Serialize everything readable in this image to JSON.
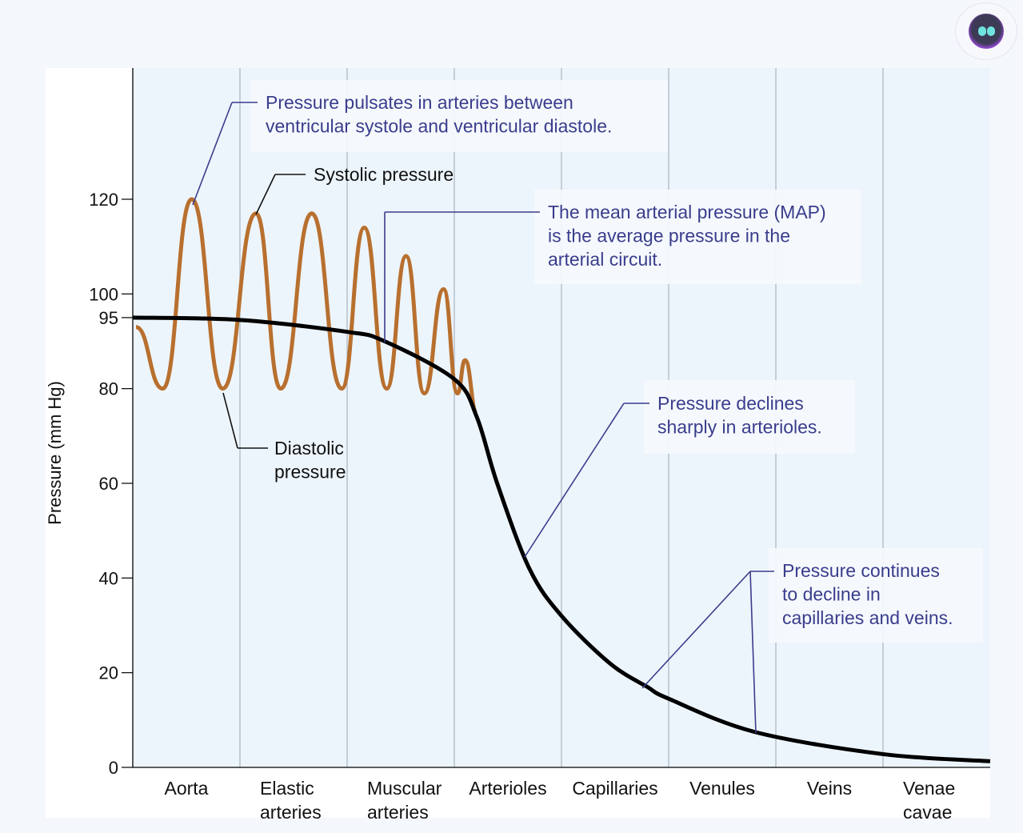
{
  "chart_data": {
    "type": "line",
    "ylabel": "Pressure (mm Hg)",
    "ylim": [
      0,
      150
    ],
    "yticks": [
      0,
      20,
      40,
      60,
      80,
      95,
      100,
      120
    ],
    "categories": [
      "Aorta",
      "Elastic arteries",
      "Muscular arteries",
      "Arterioles",
      "Capillaries",
      "Venules",
      "Veins",
      "Venae cavae"
    ],
    "grid": "vertical lines between categories",
    "colors": {
      "pulse": "#b8702f",
      "map": "#000000",
      "callout": "#3a3d8c",
      "plot_bg": "#edf5fc"
    },
    "series": [
      {
        "name": "Systolic / Diastolic pressure",
        "x": [
          0.03,
          0.28,
          0.55,
          0.84,
          1.15,
          1.38,
          1.67,
          1.95,
          2.16,
          2.37,
          2.55,
          2.72,
          2.9,
          3.03,
          3.1,
          3.21
        ],
        "y": [
          93,
          80,
          120,
          80,
          117,
          80,
          117,
          80,
          114,
          80,
          108,
          79,
          101,
          79,
          86,
          75
        ]
      },
      {
        "name": "Mean arterial pressure (MAP)",
        "x": [
          0,
          1,
          2,
          2.35,
          3,
          3.21,
          3.4,
          3.7,
          4,
          4.45,
          4.8,
          5,
          5.8,
          7,
          8
        ],
        "y": [
          95,
          94.5,
          92,
          90,
          82,
          74,
          60,
          42,
          32,
          22,
          17,
          14.5,
          7.5,
          2.8,
          1.3
        ]
      }
    ],
    "annotations": [
      {
        "text": [
          "Pressure pulsates in arteries between",
          "ventricular systole and ventricular diastole."
        ],
        "color": "callout"
      },
      {
        "text": [
          "Systolic pressure"
        ],
        "color": "black"
      },
      {
        "text": [
          "Diastolic",
          "pressure"
        ],
        "color": "black"
      },
      {
        "text": [
          "The mean arterial pressure (MAP)",
          "is the average pressure in the",
          "arterial circuit."
        ],
        "color": "callout"
      },
      {
        "text": [
          "Pressure declines",
          "sharply in arterioles."
        ],
        "color": "callout"
      },
      {
        "text": [
          "Pressure continues",
          "to decline in",
          "capillaries and veins."
        ],
        "color": "callout"
      }
    ]
  },
  "assistant_button": {
    "icon": "chat-bot-icon"
  }
}
